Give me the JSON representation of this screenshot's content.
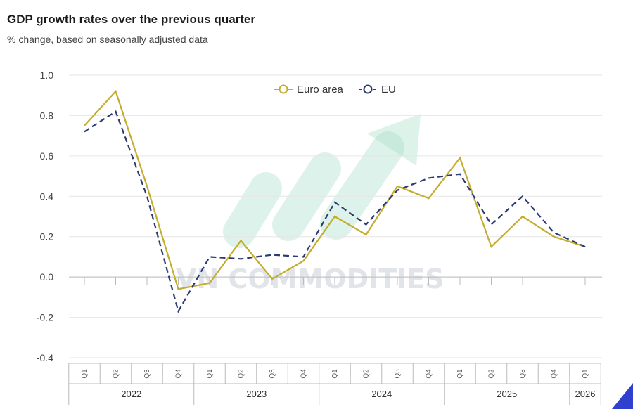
{
  "title": "GDP growth rates over the previous quarter",
  "subtitle": "% change, based on seasonally adjusted data",
  "watermark": "VN COMMODITIES",
  "colors": {
    "euro_area": "#c2ad2e",
    "eu": "#2b3a73",
    "grid": "#e6e6e6",
    "watermark_green": "#9fdcc4"
  },
  "chart_data": {
    "type": "line",
    "title": "GDP growth rates over the previous quarter",
    "subtitle": "% change, based on seasonally adjusted data",
    "xlabel": "",
    "ylabel": "",
    "ylim": [
      -0.4,
      1.0
    ],
    "yticks": [
      "1.0",
      "0.8",
      "0.6",
      "0.4",
      "0.2",
      "0.0",
      "-0.2",
      "-0.4"
    ],
    "grid": true,
    "legend_position": "top-center",
    "categories": [
      "Q1",
      "Q2",
      "Q3",
      "Q4",
      "Q1",
      "Q2",
      "Q3",
      "Q4",
      "Q1",
      "Q2",
      "Q3",
      "Q4",
      "Q1",
      "Q2",
      "Q3",
      "Q4",
      "Q1"
    ],
    "years": [
      {
        "label": "2022",
        "quarters": 4
      },
      {
        "label": "2023",
        "quarters": 4
      },
      {
        "label": "2024",
        "quarters": 4
      },
      {
        "label": "2025",
        "quarters": 4
      },
      {
        "label": "2026",
        "quarters": 1
      }
    ],
    "series": [
      {
        "name": "Euro area",
        "style": "solid",
        "values": [
          0.75,
          0.92,
          0.45,
          -0.06,
          -0.03,
          0.18,
          -0.01,
          0.08,
          0.3,
          0.21,
          0.45,
          0.39,
          0.59,
          0.15,
          0.3,
          0.2,
          0.15
        ]
      },
      {
        "name": "EU",
        "style": "dashed",
        "values": [
          0.72,
          0.82,
          0.4,
          -0.17,
          0.1,
          0.09,
          0.11,
          0.1,
          0.37,
          0.26,
          0.43,
          0.49,
          0.51,
          0.26,
          0.4,
          0.22,
          0.15
        ]
      }
    ]
  }
}
